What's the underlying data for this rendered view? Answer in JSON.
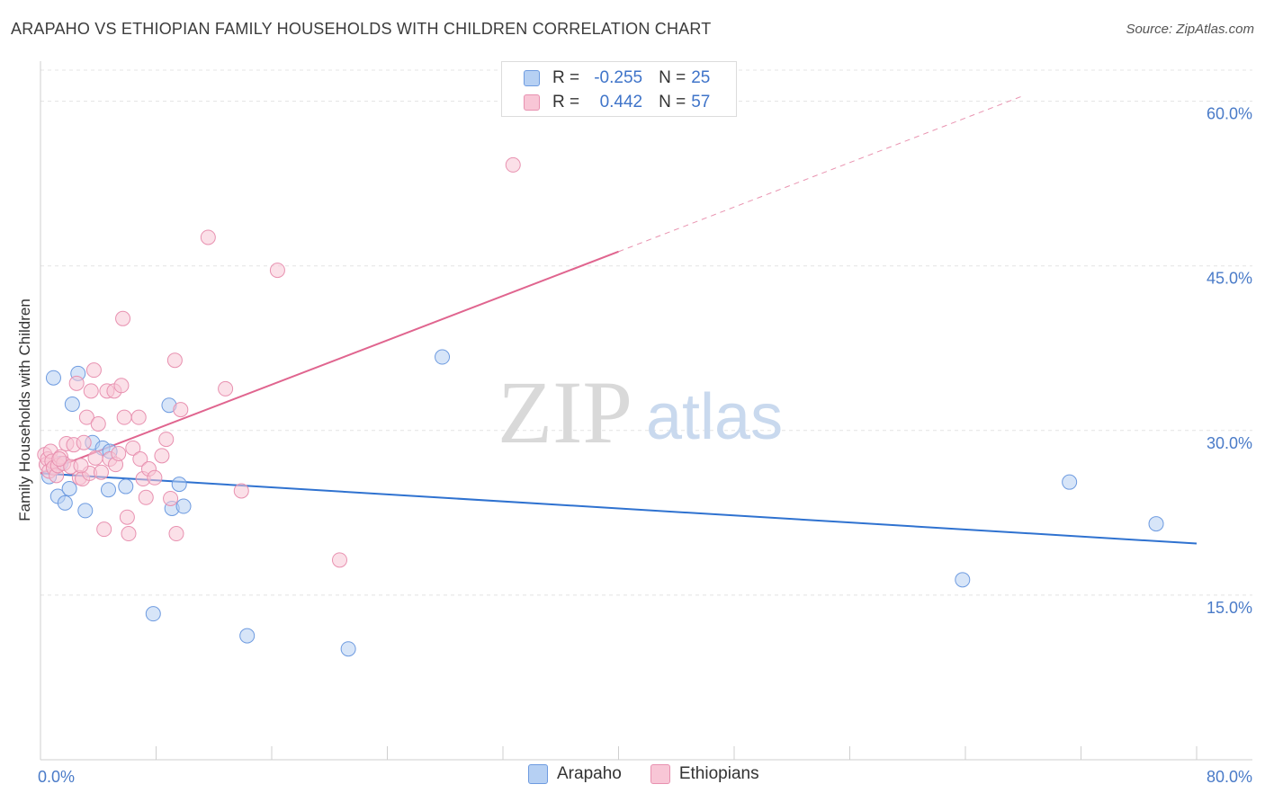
{
  "title": "ARAPAHO VS ETHIOPIAN FAMILY HOUSEHOLDS WITH CHILDREN CORRELATION CHART",
  "source": "Source: ZipAtlas.com",
  "watermark": {
    "zip": "ZIP",
    "atlas": "atlas"
  },
  "legend": {
    "r_label": "R =",
    "n_label": "N =",
    "series": [
      {
        "name": "Arapaho",
        "r": "-0.255",
        "n": "25"
      },
      {
        "name": "Ethiopians",
        "r": "0.442",
        "n": "57"
      }
    ]
  },
  "chart_data": {
    "type": "scatter",
    "title": "ARAPAHO VS ETHIOPIAN FAMILY HOUSEHOLDS WITH CHILDREN CORRELATION CHART",
    "xlabel": "",
    "ylabel": "Family Households with Children",
    "xlim": [
      0,
      80
    ],
    "ylim": [
      0,
      63
    ],
    "x_tick_labels": [
      "0.0%",
      "80.0%"
    ],
    "y_ticks": [
      15,
      30,
      45,
      60
    ],
    "y_tick_labels": [
      "15.0%",
      "30.0%",
      "45.0%",
      "60.0%"
    ],
    "grid": true,
    "colors": {
      "arapaho": "#6e9be0",
      "arapaho_fill": "#b6d0f3",
      "arapaho_line": "#2f72d0",
      "ethiopians": "#e891b0",
      "ethiopians_fill": "#f8c6d6",
      "ethiopians_line": "#e0658f"
    },
    "series": [
      {
        "name": "Arapaho",
        "points": [
          [
            0.6,
            25.8
          ],
          [
            0.9,
            34.8
          ],
          [
            1.2,
            24.0
          ],
          [
            1.7,
            23.4
          ],
          [
            2.2,
            32.4
          ],
          [
            2.6,
            35.2
          ],
          [
            3.1,
            22.7
          ],
          [
            3.6,
            28.9
          ],
          [
            4.3,
            28.4
          ],
          [
            4.7,
            24.6
          ],
          [
            5.9,
            24.9
          ],
          [
            7.8,
            13.3
          ],
          [
            8.9,
            32.3
          ],
          [
            9.1,
            22.9
          ],
          [
            9.6,
            25.1
          ],
          [
            9.9,
            23.1
          ],
          [
            14.3,
            11.3
          ],
          [
            21.3,
            10.1
          ],
          [
            27.8,
            36.7
          ],
          [
            63.8,
            16.4
          ],
          [
            71.2,
            25.3
          ],
          [
            77.2,
            21.5
          ],
          [
            1.4,
            27.0
          ],
          [
            2.0,
            24.7
          ],
          [
            4.8,
            28.1
          ]
        ],
        "trend": {
          "x": [
            0,
            80
          ],
          "y": [
            26.1,
            19.7
          ]
        }
      },
      {
        "name": "Ethiopians",
        "points": [
          [
            0.3,
            27.8
          ],
          [
            0.4,
            26.9
          ],
          [
            0.5,
            27.4
          ],
          [
            0.6,
            26.3
          ],
          [
            0.7,
            28.1
          ],
          [
            0.8,
            27.2
          ],
          [
            0.9,
            26.6
          ],
          [
            1.1,
            25.9
          ],
          [
            1.2,
            26.8
          ],
          [
            1.4,
            27.6
          ],
          [
            1.6,
            27.0
          ],
          [
            1.8,
            28.8
          ],
          [
            2.1,
            26.7
          ],
          [
            2.3,
            28.7
          ],
          [
            2.5,
            34.3
          ],
          [
            2.7,
            25.7
          ],
          [
            2.9,
            25.6
          ],
          [
            3.0,
            28.9
          ],
          [
            3.2,
            31.2
          ],
          [
            3.4,
            26.1
          ],
          [
            3.5,
            33.6
          ],
          [
            3.7,
            35.5
          ],
          [
            3.8,
            27.5
          ],
          [
            4.0,
            30.6
          ],
          [
            4.2,
            26.2
          ],
          [
            4.4,
            21.0
          ],
          [
            4.6,
            33.6
          ],
          [
            4.8,
            27.4
          ],
          [
            5.1,
            33.6
          ],
          [
            5.2,
            26.9
          ],
          [
            5.4,
            27.9
          ],
          [
            5.6,
            34.1
          ],
          [
            5.8,
            31.2
          ],
          [
            6.0,
            22.1
          ],
          [
            6.1,
            20.6
          ],
          [
            6.4,
            28.4
          ],
          [
            6.8,
            31.2
          ],
          [
            6.9,
            27.4
          ],
          [
            7.1,
            25.6
          ],
          [
            7.3,
            23.9
          ],
          [
            7.5,
            26.5
          ],
          [
            7.9,
            25.7
          ],
          [
            8.4,
            27.7
          ],
          [
            8.7,
            29.2
          ],
          [
            9.0,
            23.8
          ],
          [
            9.3,
            36.4
          ],
          [
            9.4,
            20.6
          ],
          [
            9.7,
            31.9
          ],
          [
            11.6,
            47.6
          ],
          [
            12.8,
            33.8
          ],
          [
            13.9,
            24.5
          ],
          [
            16.4,
            44.6
          ],
          [
            20.7,
            18.2
          ],
          [
            32.7,
            54.2
          ],
          [
            5.7,
            40.2
          ],
          [
            1.3,
            27.4
          ],
          [
            2.8,
            26.8
          ]
        ],
        "trend": {
          "x": [
            0,
            40
          ],
          "y": [
            26.1,
            46.3
          ]
        },
        "trend_dashed": {
          "x": [
            40,
            68
          ],
          "y": [
            46.3,
            60.5
          ]
        }
      }
    ]
  }
}
